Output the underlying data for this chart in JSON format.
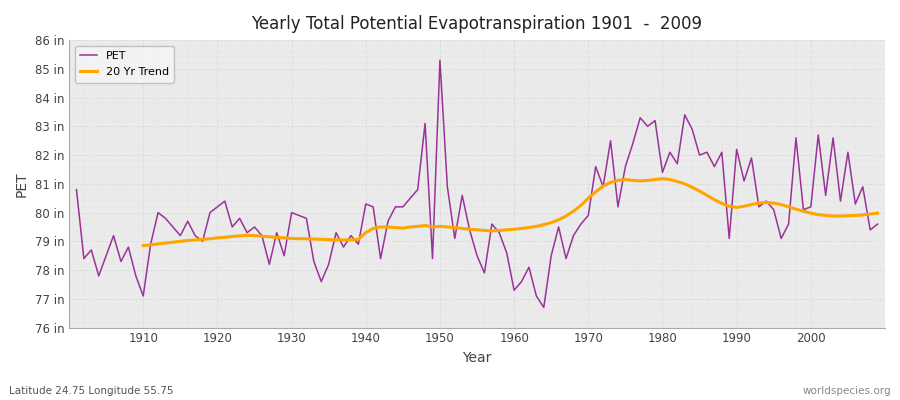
{
  "title": "Yearly Total Potential Evapotranspiration 1901  -  2009",
  "xlabel": "Year",
  "ylabel": "PET",
  "footnote_left": "Latitude 24.75 Longitude 55.75",
  "footnote_right": "worldspecies.org",
  "pet_color": "#993399",
  "trend_color": "#FFA500",
  "fig_bg_color": "#FFFFFF",
  "plot_bg_color": "#EBEBEB",
  "grid_color": "#CCCCCC",
  "ylim_min": 76,
  "ylim_max": 86,
  "ytick_values": [
    76,
    77,
    78,
    79,
    80,
    81,
    82,
    83,
    84,
    85,
    86
  ],
  "xticks": [
    1910,
    1920,
    1930,
    1940,
    1950,
    1960,
    1970,
    1980,
    1990,
    2000
  ],
  "years": [
    1901,
    1902,
    1903,
    1904,
    1905,
    1906,
    1907,
    1908,
    1909,
    1910,
    1911,
    1912,
    1913,
    1914,
    1915,
    1916,
    1917,
    1918,
    1919,
    1920,
    1921,
    1922,
    1923,
    1924,
    1925,
    1926,
    1927,
    1928,
    1929,
    1930,
    1931,
    1932,
    1933,
    1934,
    1935,
    1936,
    1937,
    1938,
    1939,
    1940,
    1941,
    1942,
    1943,
    1944,
    1945,
    1946,
    1947,
    1948,
    1949,
    1950,
    1951,
    1952,
    1953,
    1954,
    1955,
    1956,
    1957,
    1958,
    1959,
    1960,
    1961,
    1962,
    1963,
    1964,
    1965,
    1966,
    1967,
    1968,
    1969,
    1970,
    1971,
    1972,
    1973,
    1974,
    1975,
    1976,
    1977,
    1978,
    1979,
    1980,
    1981,
    1982,
    1983,
    1984,
    1985,
    1986,
    1987,
    1988,
    1989,
    1990,
    1991,
    1992,
    1993,
    1994,
    1995,
    1996,
    1997,
    1998,
    1999,
    2000,
    2001,
    2002,
    2003,
    2004,
    2005,
    2006,
    2007,
    2008,
    2009
  ],
  "pet_values": [
    80.8,
    78.4,
    78.7,
    77.8,
    78.5,
    79.2,
    78.3,
    78.8,
    77.8,
    77.1,
    78.9,
    80.0,
    79.8,
    79.5,
    79.2,
    79.7,
    79.2,
    79.0,
    80.0,
    80.2,
    80.4,
    79.5,
    79.8,
    79.3,
    79.5,
    79.2,
    78.2,
    79.3,
    78.5,
    80.0,
    79.9,
    79.8,
    78.3,
    77.6,
    78.2,
    79.3,
    78.8,
    79.2,
    78.9,
    80.3,
    80.2,
    78.4,
    79.7,
    80.2,
    80.2,
    80.5,
    80.8,
    83.1,
    78.4,
    85.3,
    80.9,
    79.1,
    80.6,
    79.4,
    78.5,
    77.9,
    79.6,
    79.3,
    78.6,
    77.3,
    77.6,
    78.1,
    77.1,
    76.7,
    78.5,
    79.5,
    78.4,
    79.2,
    79.6,
    79.9,
    81.6,
    80.9,
    82.5,
    80.2,
    81.6,
    82.4,
    83.3,
    83.0,
    83.2,
    81.4,
    82.1,
    81.7,
    83.4,
    82.9,
    82.0,
    82.1,
    81.6,
    82.1,
    79.1,
    82.2,
    81.1,
    81.9,
    80.2,
    80.4,
    80.1,
    79.1,
    79.6,
    82.6,
    80.1,
    80.2,
    82.7,
    80.6,
    82.6,
    80.4,
    82.1,
    80.3,
    80.9,
    79.4,
    79.6
  ],
  "trend_years": [
    1910,
    1911,
    1912,
    1913,
    1914,
    1915,
    1916,
    1917,
    1918,
    1919,
    1920,
    1921,
    1922,
    1923,
    1924,
    1925,
    1926,
    1927,
    1928,
    1929,
    1930,
    1931,
    1932,
    1933,
    1934,
    1935,
    1936,
    1937,
    1938,
    1939,
    1940,
    1941,
    1942,
    1943,
    1944,
    1945,
    1946,
    1947,
    1948,
    1949,
    1950,
    1951,
    1952,
    1953,
    1954,
    1955,
    1956,
    1957,
    1958,
    1959,
    1960,
    1961,
    1962,
    1963,
    1964,
    1965,
    1966,
    1967,
    1968,
    1969,
    1970,
    1971,
    1972,
    1973,
    1974,
    1975,
    1976,
    1977,
    1978,
    1979,
    1980,
    1981,
    1982,
    1983,
    1984,
    1985,
    1986,
    1987,
    1988,
    1989,
    1990,
    1991,
    1992,
    1993,
    1994,
    1995,
    1996,
    1997,
    1998,
    1999,
    2000,
    2001,
    2002,
    2003,
    2004,
    2005,
    2006,
    2007,
    2008,
    2009
  ],
  "trend_values": [
    78.85,
    78.88,
    78.91,
    78.94,
    78.97,
    79.0,
    79.03,
    79.05,
    79.07,
    79.09,
    79.12,
    79.14,
    79.17,
    79.19,
    79.21,
    79.2,
    79.18,
    79.16,
    79.14,
    79.12,
    79.1,
    79.09,
    79.09,
    79.08,
    79.07,
    79.06,
    79.05,
    79.05,
    79.05,
    79.07,
    79.3,
    79.45,
    79.5,
    79.5,
    79.48,
    79.46,
    79.5,
    79.52,
    79.55,
    79.5,
    79.52,
    79.5,
    79.48,
    79.45,
    79.42,
    79.4,
    79.38,
    79.36,
    79.38,
    79.4,
    79.42,
    79.45,
    79.48,
    79.52,
    79.58,
    79.65,
    79.75,
    79.88,
    80.05,
    80.25,
    80.5,
    80.72,
    80.92,
    81.05,
    81.12,
    81.15,
    81.12,
    81.1,
    81.12,
    81.15,
    81.18,
    81.15,
    81.08,
    81.0,
    80.88,
    80.75,
    80.6,
    80.45,
    80.32,
    80.22,
    80.18,
    80.22,
    80.28,
    80.33,
    80.35,
    80.33,
    80.28,
    80.2,
    80.12,
    80.05,
    79.98,
    79.93,
    79.9,
    79.88,
    79.88,
    79.89,
    79.9,
    79.92,
    79.95,
    79.98
  ]
}
